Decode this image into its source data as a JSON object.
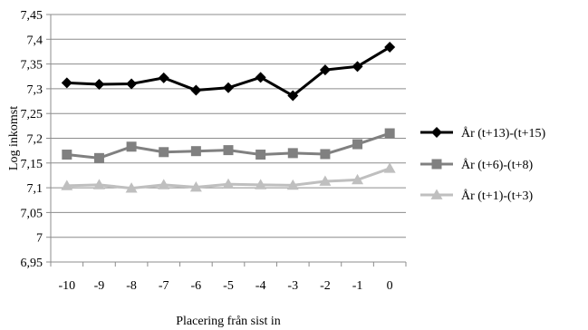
{
  "chart_data": {
    "type": "line",
    "xlabel": "Placering från sist in",
    "ylabel": "Log inkomst",
    "ylim": [
      6.95,
      7.45
    ],
    "y_ticks": [
      "6,95",
      "7",
      "7,05",
      "7,1",
      "7,15",
      "7,2",
      "7,25",
      "7,3",
      "7,35",
      "7,4",
      "7,45"
    ],
    "y_tick_values": [
      6.95,
      7.0,
      7.05,
      7.1,
      7.15,
      7.2,
      7.25,
      7.3,
      7.35,
      7.4,
      7.45
    ],
    "categories": [
      "-10",
      "-9",
      "-8",
      "-7",
      "-6",
      "-5",
      "-4",
      "-3",
      "-2",
      "-1",
      "0"
    ],
    "grid": "horizontal",
    "legend_position": "right",
    "series": [
      {
        "name": "År (t+13)-(t+15)",
        "color": "#000000",
        "marker": "diamond",
        "values": [
          7.312,
          7.309,
          7.31,
          7.322,
          7.297,
          7.302,
          7.323,
          7.286,
          7.338,
          7.345,
          7.384
        ]
      },
      {
        "name": "År (t+6)-(t+8)",
        "color": "#808080",
        "marker": "square",
        "values": [
          7.167,
          7.16,
          7.183,
          7.172,
          7.174,
          7.176,
          7.167,
          7.17,
          7.168,
          7.188,
          7.21
        ]
      },
      {
        "name": "År (t+1)-(t+3)",
        "color": "#bfbfbf",
        "marker": "triangle",
        "values": [
          7.104,
          7.106,
          7.099,
          7.106,
          7.101,
          7.107,
          7.106,
          7.105,
          7.113,
          7.116,
          7.139
        ]
      }
    ]
  }
}
